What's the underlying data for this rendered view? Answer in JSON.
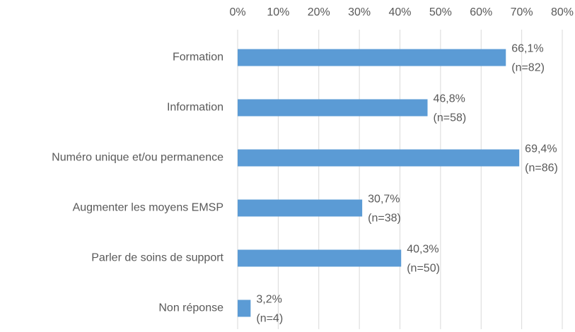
{
  "chart_data": {
    "type": "barh",
    "categories": [
      "Formation",
      "Information",
      "Numéro unique et/ou permanence",
      "Augmenter les moyens EMSP",
      "Parler de soins de support",
      "Non réponse"
    ],
    "values": [
      66.1,
      46.8,
      69.4,
      30.7,
      40.3,
      3.2
    ],
    "value_labels": [
      "66,1%",
      "46,8%",
      "69,4%",
      "30,7%",
      "40,3%",
      "3,2%"
    ],
    "count_labels": [
      "(n=82)",
      "(n=58)",
      "(n=86)",
      "(n=38)",
      "(n=50)",
      "(n=4)"
    ],
    "color": "#5b9bd5",
    "xlim": [
      0,
      80
    ],
    "xticks": [
      {
        "value": 0,
        "label": "0%"
      },
      {
        "value": 10,
        "label": "10%"
      },
      {
        "value": 20,
        "label": "20%"
      },
      {
        "value": 30,
        "label": "30%"
      },
      {
        "value": 40,
        "label": "40%"
      },
      {
        "value": 50,
        "label": "50%"
      },
      {
        "value": 60,
        "label": "60%"
      },
      {
        "value": 70,
        "label": "70%"
      },
      {
        "value": 80,
        "label": "80%"
      }
    ],
    "grid": true
  }
}
